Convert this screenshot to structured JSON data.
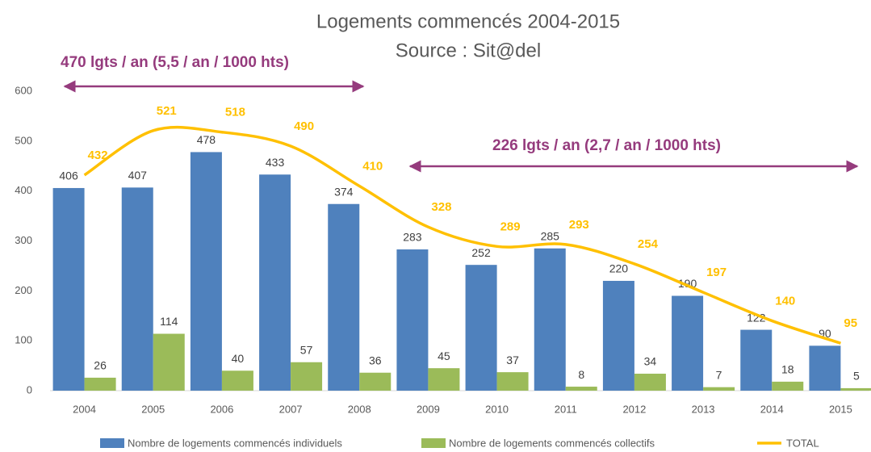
{
  "chart_data": {
    "type": "bar",
    "title": "Logements commencés 2004-2015",
    "subtitle": "Source : Sit@del",
    "annotations": [
      "470 lgts / an (5,5 / an / 1000 hts)",
      "226 lgts / an (2,7 / an / 1000 hts)"
    ],
    "categories": [
      "2004",
      "2005",
      "2006",
      "2007",
      "2008",
      "2009",
      "2010",
      "2011",
      "2012",
      "2013",
      "2014",
      "2015"
    ],
    "series": [
      {
        "name": "Nombre de logements commencés individuels",
        "color": "#4f81bd",
        "type": "bar",
        "values": [
          406,
          407,
          478,
          433,
          374,
          283,
          252,
          285,
          220,
          190,
          122,
          90
        ]
      },
      {
        "name": "Nombre de logements commencés collectifs",
        "color": "#9bbb59",
        "type": "bar",
        "values": [
          26,
          114,
          40,
          57,
          36,
          45,
          37,
          8,
          34,
          7,
          18,
          5
        ]
      },
      {
        "name": "TOTAL",
        "color": "#ffc000",
        "type": "line",
        "values": [
          432,
          521,
          518,
          490,
          410,
          328,
          289,
          293,
          254,
          197,
          140,
          95
        ]
      }
    ],
    "ylim": [
      0,
      600
    ],
    "yticks": [
      0,
      100,
      200,
      300,
      400,
      500,
      600
    ],
    "grid": false,
    "legend": "bottom"
  }
}
